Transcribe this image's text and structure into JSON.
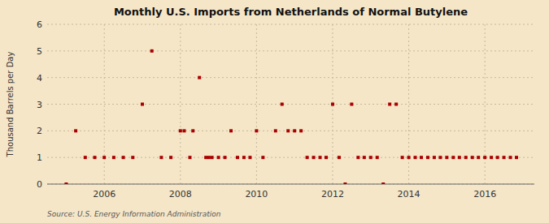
{
  "chart_data": {
    "type": "scatter",
    "title": "Monthly U.S. Imports from Netherlands of Normal Butylene",
    "ylabel": "Thousand Barrels per Day",
    "source": "Source: U.S. Energy Information Administration",
    "color": "#aa0000",
    "marker": "square",
    "grid": true,
    "xlim": [
      2004.5,
      2017.3
    ],
    "ylim": [
      0,
      6
    ],
    "xticks": [
      2006,
      2008,
      2010,
      2012,
      2014,
      2016
    ],
    "yticks": [
      0,
      1,
      2,
      3,
      4,
      5,
      6
    ],
    "x": [
      2005.0,
      2005.25,
      2005.5,
      2005.75,
      2006.0,
      2006.25,
      2006.5,
      2006.75,
      2007.0,
      2007.25,
      2007.5,
      2007.75,
      2008.0,
      2008.1,
      2008.25,
      2008.33,
      2008.5,
      2008.67,
      2008.75,
      2008.83,
      2009.0,
      2009.17,
      2009.33,
      2009.5,
      2009.67,
      2009.83,
      2010.0,
      2010.17,
      2010.5,
      2010.67,
      2010.83,
      2011.0,
      2011.17,
      2011.33,
      2011.5,
      2011.67,
      2011.83,
      2012.0,
      2012.17,
      2012.33,
      2012.5,
      2012.67,
      2012.83,
      2013.0,
      2013.17,
      2013.33,
      2013.5,
      2013.67,
      2013.83,
      2014.0,
      2014.17,
      2014.33,
      2014.5,
      2014.67,
      2014.83,
      2015.0,
      2015.17,
      2015.33,
      2015.5,
      2015.67,
      2015.83,
      2016.0,
      2016.17,
      2016.33,
      2016.5,
      2016.67,
      2016.83
    ],
    "values": [
      0,
      2,
      1,
      1,
      1,
      1,
      1,
      1,
      3,
      5,
      1,
      1,
      2,
      2,
      1,
      2,
      4,
      1,
      1,
      1,
      1,
      1,
      2,
      1,
      1,
      1,
      2,
      1,
      2,
      3,
      2,
      2,
      2,
      1,
      1,
      1,
      1,
      3,
      1,
      0,
      3,
      1,
      1,
      1,
      1,
      0,
      3,
      3,
      1,
      1,
      1,
      1,
      1,
      1,
      1,
      1,
      1,
      1,
      1,
      1,
      1,
      1,
      1,
      1,
      1,
      1,
      1
    ]
  }
}
